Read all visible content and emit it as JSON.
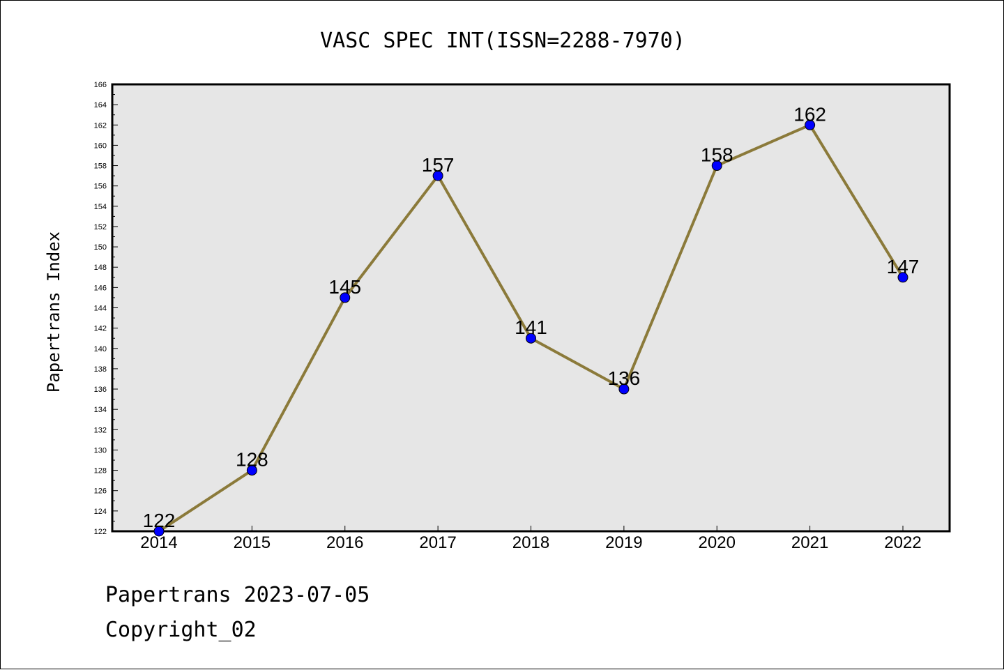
{
  "chart_data": {
    "type": "line",
    "title": "VASC SPEC INT(ISSN=2288-7970)",
    "ylabel": "Papertrans Index",
    "xlabel": "",
    "x": [
      "2014",
      "2015",
      "2016",
      "2017",
      "2018",
      "2019",
      "2020",
      "2021",
      "2022"
    ],
    "series": [
      {
        "values": [
          122,
          128,
          145,
          157,
          141,
          136,
          158,
          162,
          147
        ]
      }
    ],
    "ylim": [
      122,
      166
    ],
    "y_major_step": 2,
    "grid": false,
    "legend": "none",
    "colors": {
      "line": "#8b7a3a",
      "marker": "#0000ff",
      "plot_bg": "#e6e6e6"
    }
  },
  "footer": {
    "line1": "Papertrans 2023-07-05",
    "line2": "Copyright_02"
  }
}
